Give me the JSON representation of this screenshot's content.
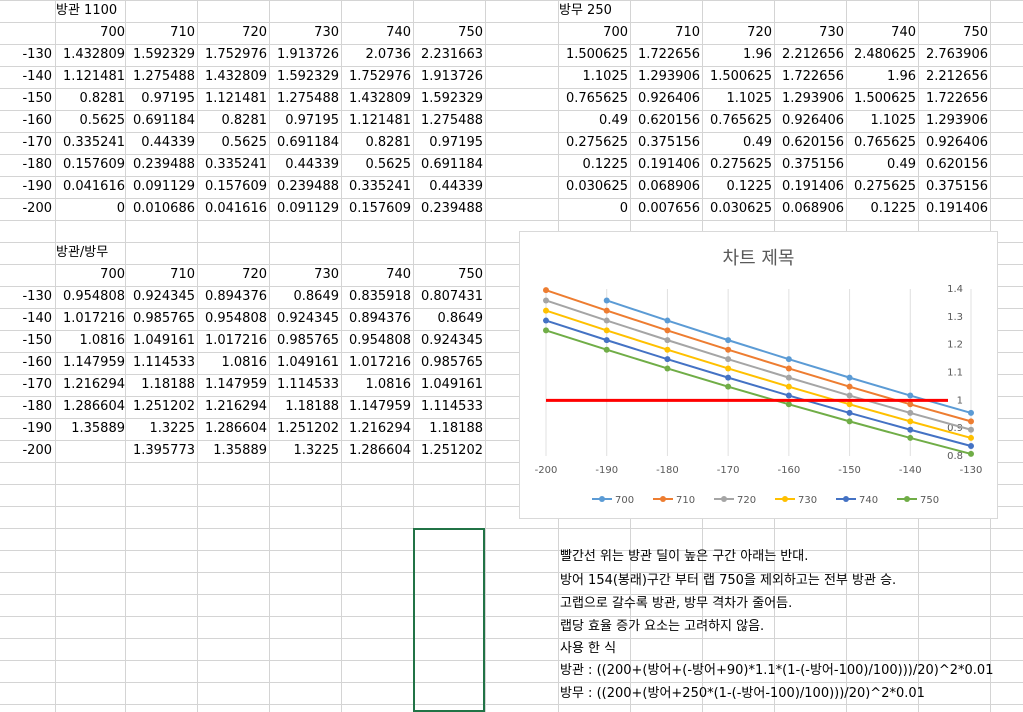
{
  "tables": [
    {
      "title": "방관 1100",
      "columns": [
        "700",
        "710",
        "720",
        "730",
        "740",
        "750"
      ],
      "rows": [
        {
          "key": "-130",
          "vals": [
            "1.432809",
            "1.592329",
            "1.752976",
            "1.913726",
            "2.0736",
            "2.231663"
          ]
        },
        {
          "key": "-140",
          "vals": [
            "1.121481",
            "1.275488",
            "1.432809",
            "1.592329",
            "1.752976",
            "1.913726"
          ]
        },
        {
          "key": "-150",
          "vals": [
            "0.8281",
            "0.97195",
            "1.121481",
            "1.275488",
            "1.432809",
            "1.592329"
          ]
        },
        {
          "key": "-160",
          "vals": [
            "0.5625",
            "0.691184",
            "0.8281",
            "0.97195",
            "1.121481",
            "1.275488"
          ]
        },
        {
          "key": "-170",
          "vals": [
            "0.335241",
            "0.44339",
            "0.5625",
            "0.691184",
            "0.8281",
            "0.97195"
          ]
        },
        {
          "key": "-180",
          "vals": [
            "0.157609",
            "0.239488",
            "0.335241",
            "0.44339",
            "0.5625",
            "0.691184"
          ]
        },
        {
          "key": "-190",
          "vals": [
            "0.041616",
            "0.091129",
            "0.157609",
            "0.239488",
            "0.335241",
            "0.44339"
          ]
        },
        {
          "key": "-200",
          "vals": [
            "0",
            "0.010686",
            "0.041616",
            "0.091129",
            "0.157609",
            "0.239488"
          ]
        }
      ]
    },
    {
      "title": "방무 250",
      "columns": [
        "700",
        "710",
        "720",
        "730",
        "740",
        "750"
      ],
      "rows": [
        {
          "key": "",
          "vals": [
            "1.500625",
            "1.722656",
            "1.96",
            "2.212656",
            "2.480625",
            "2.763906"
          ]
        },
        {
          "key": "",
          "vals": [
            "1.1025",
            "1.293906",
            "1.500625",
            "1.722656",
            "1.96",
            "2.212656"
          ]
        },
        {
          "key": "",
          "vals": [
            "0.765625",
            "0.926406",
            "1.1025",
            "1.293906",
            "1.500625",
            "1.722656"
          ]
        },
        {
          "key": "",
          "vals": [
            "0.49",
            "0.620156",
            "0.765625",
            "0.926406",
            "1.1025",
            "1.293906"
          ]
        },
        {
          "key": "",
          "vals": [
            "0.275625",
            "0.375156",
            "0.49",
            "0.620156",
            "0.765625",
            "0.926406"
          ]
        },
        {
          "key": "",
          "vals": [
            "0.1225",
            "0.191406",
            "0.275625",
            "0.375156",
            "0.49",
            "0.620156"
          ]
        },
        {
          "key": "",
          "vals": [
            "0.030625",
            "0.068906",
            "0.1225",
            "0.191406",
            "0.275625",
            "0.375156"
          ]
        },
        {
          "key": "",
          "vals": [
            "0",
            "0.007656",
            "0.030625",
            "0.068906",
            "0.1225",
            "0.191406"
          ]
        }
      ]
    },
    {
      "title": "방관/방무",
      "columns": [
        "700",
        "710",
        "720",
        "730",
        "740",
        "750"
      ],
      "rows": [
        {
          "key": "-130",
          "vals": [
            "0.954808",
            "0.924345",
            "0.894376",
            "0.8649",
            "0.835918",
            "0.807431"
          ]
        },
        {
          "key": "-140",
          "vals": [
            "1.017216",
            "0.985765",
            "0.954808",
            "0.924345",
            "0.894376",
            "0.8649"
          ]
        },
        {
          "key": "-150",
          "vals": [
            "1.0816",
            "1.049161",
            "1.017216",
            "0.985765",
            "0.954808",
            "0.924345"
          ]
        },
        {
          "key": "-160",
          "vals": [
            "1.147959",
            "1.114533",
            "1.0816",
            "1.049161",
            "1.017216",
            "0.985765"
          ]
        },
        {
          "key": "-170",
          "vals": [
            "1.216294",
            "1.18188",
            "1.147959",
            "1.114533",
            "1.0816",
            "1.049161"
          ]
        },
        {
          "key": "-180",
          "vals": [
            "1.286604",
            "1.251202",
            "1.216294",
            "1.18188",
            "1.147959",
            "1.114533"
          ]
        },
        {
          "key": "-190",
          "vals": [
            "1.35889",
            "1.3225",
            "1.286604",
            "1.251202",
            "1.216294",
            "1.18188"
          ]
        },
        {
          "key": "-200",
          "vals": [
            "",
            "1.395773",
            "1.35889",
            "1.3225",
            "1.286604",
            "1.251202"
          ]
        }
      ]
    }
  ],
  "chart_data": {
    "type": "line",
    "title": "차트 제목",
    "x": [
      -200,
      -190,
      -180,
      -170,
      -160,
      -150,
      -140,
      -130
    ],
    "xlim": [
      -200,
      -130
    ],
    "ylim": [
      0.8,
      1.4
    ],
    "x_ticks": [
      "-200",
      "-190",
      "-180",
      "-170",
      "-160",
      "-150",
      "-140",
      "-130"
    ],
    "y_ticks": [
      "0.8",
      "0.9",
      "1",
      "1.1",
      "1.2",
      "1.3",
      "1.4"
    ],
    "grid": "vertical",
    "legend_position": "bottom",
    "series": [
      {
        "name": "700",
        "color": "#5b9bd5",
        "values": [
          null,
          1.35889,
          1.286604,
          1.216294,
          1.147959,
          1.0816,
          1.017216,
          0.954808
        ]
      },
      {
        "name": "710",
        "color": "#ed7d31",
        "values": [
          1.395773,
          1.3225,
          1.251202,
          1.18188,
          1.114533,
          1.049161,
          0.985765,
          0.924345
        ]
      },
      {
        "name": "720",
        "color": "#a5a5a5",
        "values": [
          1.35889,
          1.286604,
          1.216294,
          1.147959,
          1.0816,
          1.017216,
          0.954808,
          0.894376
        ]
      },
      {
        "name": "730",
        "color": "#ffc000",
        "values": [
          1.3225,
          1.251202,
          1.18188,
          1.114533,
          1.049161,
          0.985765,
          0.924345,
          0.8649
        ]
      },
      {
        "name": "740",
        "color": "#4472c4",
        "values": [
          1.286604,
          1.216294,
          1.147959,
          1.0816,
          1.017216,
          0.954808,
          0.894376,
          0.835918
        ]
      },
      {
        "name": "750",
        "color": "#70ad47",
        "values": [
          1.251202,
          1.18188,
          1.114533,
          1.049161,
          0.985765,
          0.924345,
          0.8649,
          0.807431
        ]
      }
    ],
    "reference_line": {
      "value": 1,
      "color": "#ff0000"
    }
  },
  "notes": [
    "빨간선 위는 방관 딜이 높은 구간 아래는 반대.",
    "방어 154(봉래)구간 부터 랩 750을 제외하고는 전부 방관 승.",
    "고랩으로 갈수록 방관, 방무 격차가 줄어듬.",
    "랩당 효율 증가 요소는 고려하지 않음.",
    "사용 한 식",
    "방관 : ((200+(방어+(-방어+90)*1.1*(1-(-방어-100)/100)))/20)^2*0.01",
    "방무 : ((200+(방어+250*(1-(-방어-100)/100)))/20)^2*0.01"
  ]
}
